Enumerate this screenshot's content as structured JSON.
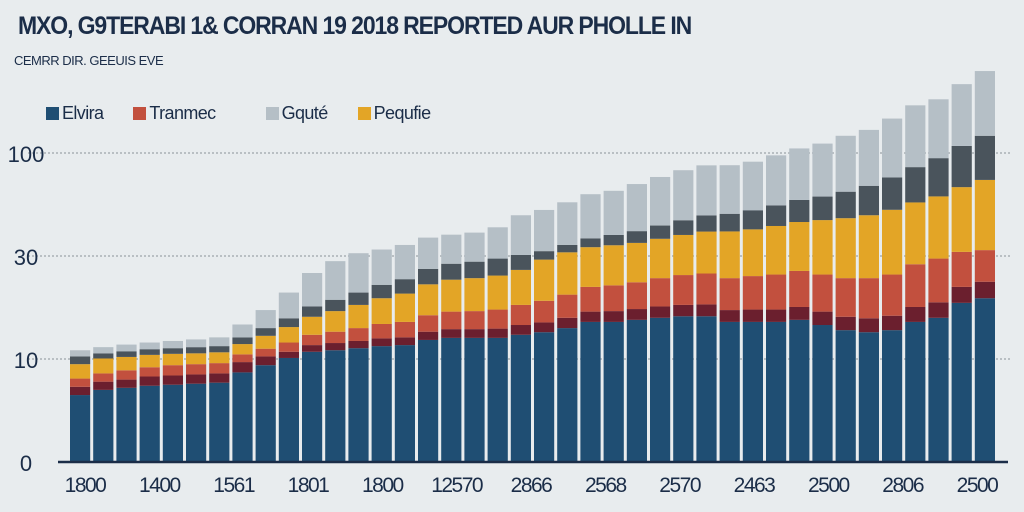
{
  "chart_data": {
    "type": "bar",
    "stacked": true,
    "title": "MXO, G9TERABI 1& CORRAN 19 2018 REPORTED AUR PHOLLE IN",
    "subtitle": "CEMRR DIR. GEEUIS EVE",
    "legend_position": "top-left",
    "grid": true,
    "y_ticks": [
      0,
      10,
      30,
      100
    ],
    "y_tick_labels": [
      "0",
      "10",
      "30",
      "100"
    ],
    "x_tick_labels": [
      "1800",
      "1400",
      "1561",
      "1801",
      "1800",
      "12570",
      "2866",
      "2568",
      "2570",
      "2463",
      "2500",
      "2806",
      "2500"
    ],
    "legend": [
      {
        "name": "Elvira",
        "color": "#1f4e73"
      },
      {
        "name": "Tranmec",
        "color": "#c2503e"
      },
      {
        "name": "Gquté",
        "color": "#b5bfc6"
      },
      {
        "name": "Pequfie",
        "color": "#e3a526"
      }
    ],
    "series": [
      {
        "name": "Elvira",
        "color": "#1f4e73",
        "values": [
          6.5,
          7.0,
          7.2,
          7.4,
          7.5,
          7.6,
          7.7,
          8.7,
          9.4,
          10.2,
          11.4,
          11.7,
          12.1,
          12.5,
          12.7,
          13.7,
          14.1,
          14.1,
          14.1,
          14.7,
          15.2,
          16.0,
          17.2,
          17.2,
          17.6,
          18.0,
          18.3,
          18.3,
          17.2,
          17.2,
          17.2,
          17.6,
          16.6,
          15.6,
          15.2,
          15.6,
          17.2,
          18.0,
          20.9,
          21.8
        ]
      },
      {
        "color": "#6b1f2e",
        "values": [
          0.8,
          0.8,
          0.8,
          0.9,
          0.9,
          0.9,
          0.9,
          1.0,
          1.1,
          1.2,
          1.3,
          1.4,
          1.4,
          1.5,
          1.5,
          1.6,
          1.7,
          1.7,
          1.8,
          1.9,
          1.9,
          2.0,
          2.0,
          2.1,
          2.1,
          2.2,
          2.2,
          2.3,
          2.3,
          2.4,
          2.4,
          2.5,
          2.6,
          2.6,
          2.7,
          2.8,
          2.9,
          3.0,
          3.1,
          3.2
        ]
      },
      {
        "name": "Tranmec",
        "color": "#c2503e",
        "values": [
          0.8,
          0.8,
          0.9,
          0.9,
          1.0,
          1.0,
          1.0,
          1.2,
          1.5,
          1.8,
          2.0,
          2.2,
          2.5,
          2.8,
          3.0,
          3.2,
          3.4,
          3.5,
          3.7,
          3.9,
          4.2,
          4.5,
          4.8,
          5.0,
          5.2,
          5.5,
          5.8,
          6.0,
          6.2,
          6.5,
          6.8,
          7.0,
          7.2,
          7.5,
          7.8,
          8.0,
          8.3,
          8.5,
          8.8,
          9.0
        ]
      },
      {
        "name": "Pequfie",
        "color": "#e3a526",
        "values": [
          1.4,
          1.5,
          1.5,
          1.6,
          1.6,
          1.6,
          1.7,
          2.0,
          2.5,
          3.0,
          3.5,
          4.0,
          4.5,
          5.0,
          5.5,
          6.0,
          6.2,
          6.4,
          6.6,
          6.8,
          8,
          10,
          12,
          13,
          14,
          16,
          18,
          20,
          21,
          22,
          24,
          26,
          28,
          30,
          32,
          35,
          38,
          41,
          44,
          47.7
        ]
      },
      {
        "color": "#4a545c",
        "values": [
          1.0,
          1.0,
          1.1,
          1.1,
          1.1,
          1.2,
          1.2,
          1.3,
          1.5,
          1.7,
          2.0,
          2.2,
          2.4,
          2.6,
          2.8,
          3.0,
          3.1,
          3.2,
          3.3,
          3.4,
          4,
          5,
          6,
          7,
          8,
          9,
          10,
          11,
          12,
          13,
          14,
          15,
          16,
          18,
          20,
          22,
          24,
          26,
          28,
          30
        ]
      },
      {
        "name": "Gquté",
        "color": "#b5bfc6",
        "values": [
          1.2,
          1.2,
          1.3,
          1.3,
          1.4,
          1.5,
          1.7,
          2.5,
          3.5,
          5,
          6.5,
          7.5,
          9,
          10,
          12,
          15,
          16,
          17,
          20,
          27,
          28,
          29,
          30,
          30,
          32,
          33,
          34,
          34,
          33,
          33,
          34,
          35,
          36,
          38,
          38,
          40,
          42,
          40,
          42,
          44
        ]
      }
    ]
  }
}
